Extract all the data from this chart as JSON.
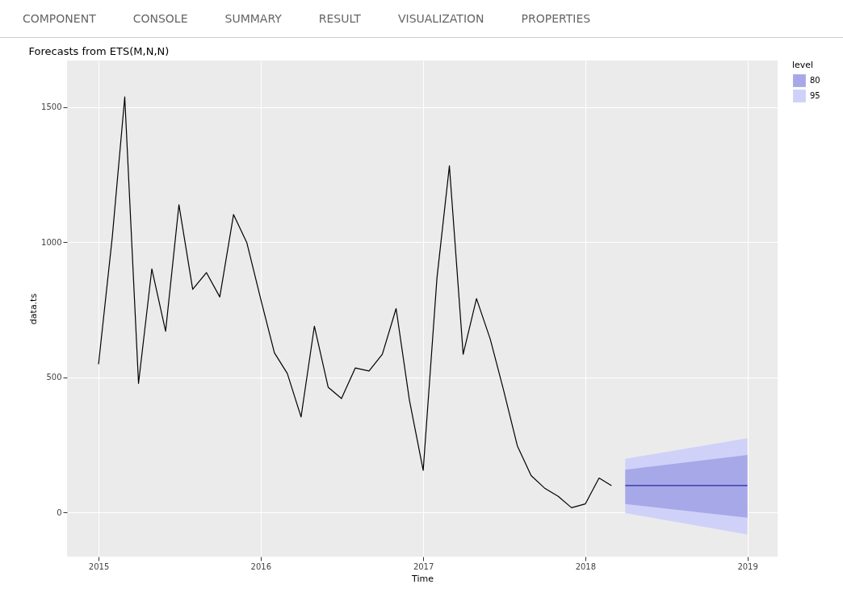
{
  "chart_data": {
    "type": "line",
    "title": "Forecasts from ETS(M,N,N)",
    "xlabel": "Time",
    "ylabel": "data.ts",
    "legend_title": "level",
    "legend": "right",
    "grid": true,
    "annotations": [
      "COMPONENT",
      "CONSOLE",
      "SUMMARY",
      "RESULT",
      "VISUALIZATION",
      "PROPERTIES"
    ],
    "xlim": [
      "2014-10-22",
      "2019-03-10"
    ],
    "xticks": [
      {
        "value": "2015",
        "label": "2015"
      },
      {
        "value": "2016",
        "label": "2016"
      },
      {
        "value": "2017",
        "label": "2017"
      },
      {
        "value": "2018",
        "label": "2018"
      },
      {
        "value": "2019",
        "label": "2019"
      }
    ],
    "ylim": [
      -164,
      1672
    ],
    "yticks": [
      0,
      500,
      1000,
      1500
    ],
    "series": [
      {
        "color": "#000000",
        "x": [
          "2015-01",
          "2015-02",
          "2015-03",
          "2015-04",
          "2015-05",
          "2015-06",
          "2015-07",
          "2015-08",
          "2015-09",
          "2015-10",
          "2015-11",
          "2015-12",
          "2016-01",
          "2016-02",
          "2016-03",
          "2016-04",
          "2016-05",
          "2016-06",
          "2016-07",
          "2016-08",
          "2016-09",
          "2016-10",
          "2016-11",
          "2016-12",
          "2017-01",
          "2017-02",
          "2017-03",
          "2017-04",
          "2017-05",
          "2017-06",
          "2017-07",
          "2017-08",
          "2017-09",
          "2017-10",
          "2017-11",
          "2017-12",
          "2018-01",
          "2018-02",
          "2018-03"
        ],
        "values": [
          548,
          1020,
          1537,
          477,
          901,
          670,
          1138,
          825,
          887,
          797,
          1102,
          997,
          790,
          590,
          514,
          353,
          689,
          463,
          421,
          534,
          523,
          585,
          754,
          415,
          155,
          867,
          1282,
          585,
          791,
          641,
          452,
          246,
          136,
          90,
          59,
          17,
          31,
          127,
          99
        ]
      },
      {
        "type": "area",
        "name": "80",
        "color": "#a6a8e8",
        "x": [
          "2018-04",
          "2019-01"
        ],
        "values": [
          null,
          null
        ],
        "lower": [
          31,
          -20
        ],
        "upper": [
          158,
          212
        ]
      },
      {
        "type": "area",
        "name": "95",
        "color": "#cfd1f8",
        "x": [
          "2018-04",
          "2019-01"
        ],
        "values": [
          null,
          null
        ],
        "lower": [
          -3,
          -82
        ],
        "upper": [
          198,
          274
        ]
      },
      {
        "color": "#2a2aa0",
        "x": [
          "2018-04",
          "2019-01"
        ],
        "values": [
          99,
          99
        ]
      }
    ]
  }
}
